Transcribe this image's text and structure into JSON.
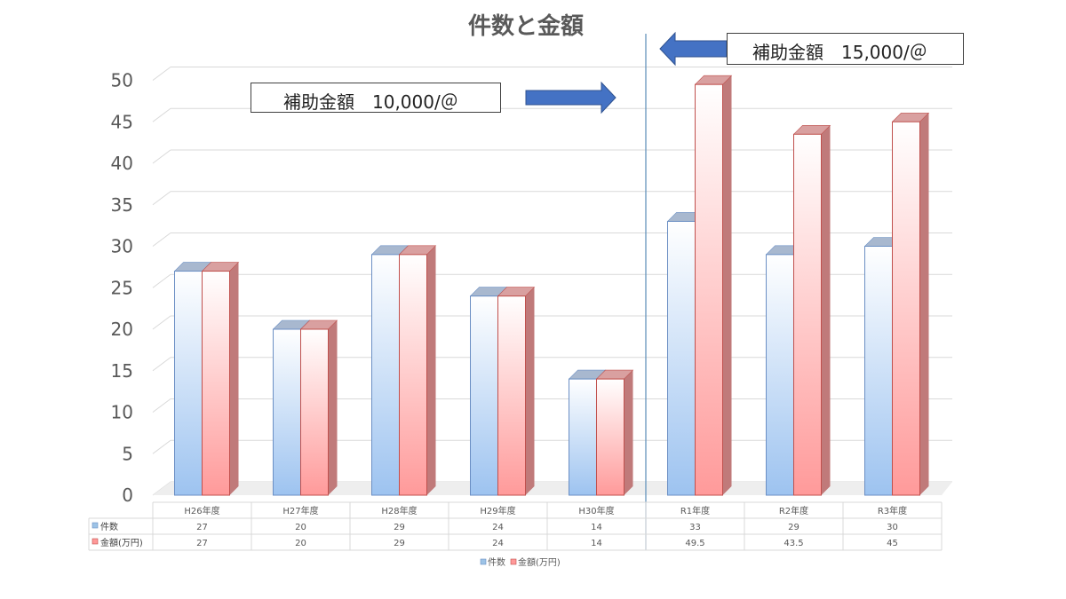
{
  "chart_data": {
    "type": "bar",
    "title": "件数と金額",
    "categories": [
      "H26年度",
      "H27年度",
      "H28年度",
      "H29年度",
      "H30年度",
      "R1年度",
      "R2年度",
      "R3年度"
    ],
    "series": [
      {
        "name": "件数",
        "values": [
          27,
          20,
          29,
          24,
          14,
          33,
          29,
          30
        ],
        "display": [
          "27",
          "20",
          "29",
          "24",
          "14",
          "33",
          "29",
          "30"
        ],
        "color": "#9dc3e6"
      },
      {
        "name": "金額(万円)",
        "values": [
          27,
          20,
          29,
          24,
          14,
          49.5,
          43.5,
          45
        ],
        "display": [
          "27",
          "20",
          "29",
          "24",
          "14",
          "49.5",
          "43.5",
          "45"
        ],
        "color": "#ff9999"
      }
    ],
    "yticks": [
      "0",
      "5",
      "10",
      "15",
      "20",
      "25",
      "30",
      "35",
      "40",
      "45",
      "50"
    ],
    "ylim": [
      0,
      50
    ],
    "grid": true,
    "legend": "bottom",
    "data_table": true
  },
  "annotations": {
    "before": "補助金額　10,000/＠",
    "after": "補助金額　15,000/＠"
  }
}
